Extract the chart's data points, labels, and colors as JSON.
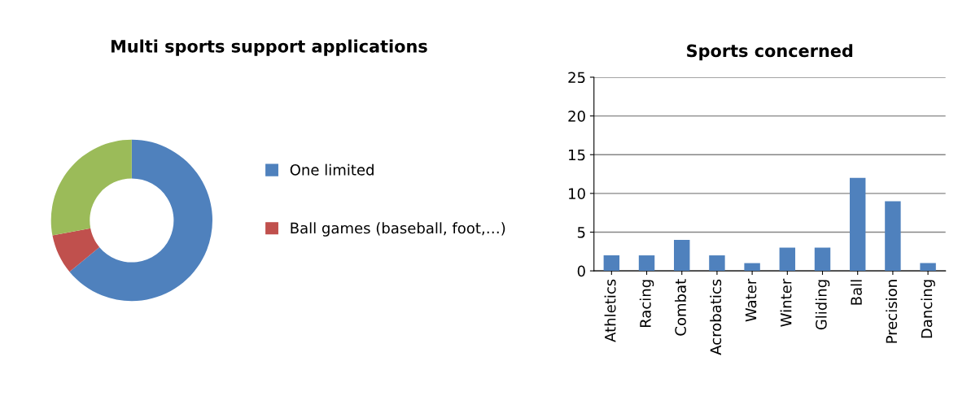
{
  "chart_data": [
    {
      "type": "donut",
      "title": "Multi sports support applications",
      "categories": [
        "One limited",
        "Ball games (baseball, foot,…)",
        null
      ],
      "values": [
        64,
        8,
        28
      ],
      "colors": [
        "#4f81bd",
        "#c0504d",
        "#9bbb59"
      ],
      "legend": "right"
    },
    {
      "type": "bar",
      "title": "Sports concerned",
      "categories": [
        "Athletics",
        "Racing",
        "Combat",
        "Acrobatics",
        "Water",
        "Winter",
        "Gliding",
        "Ball",
        "Precision",
        "Dancing"
      ],
      "values": [
        2,
        2,
        4,
        2,
        1,
        3,
        3,
        12,
        9,
        1
      ],
      "color": "#4f81bd",
      "ylim": [
        0,
        25
      ],
      "yticks": [
        0,
        5,
        10,
        15,
        20,
        25
      ],
      "grid": "y"
    }
  ]
}
